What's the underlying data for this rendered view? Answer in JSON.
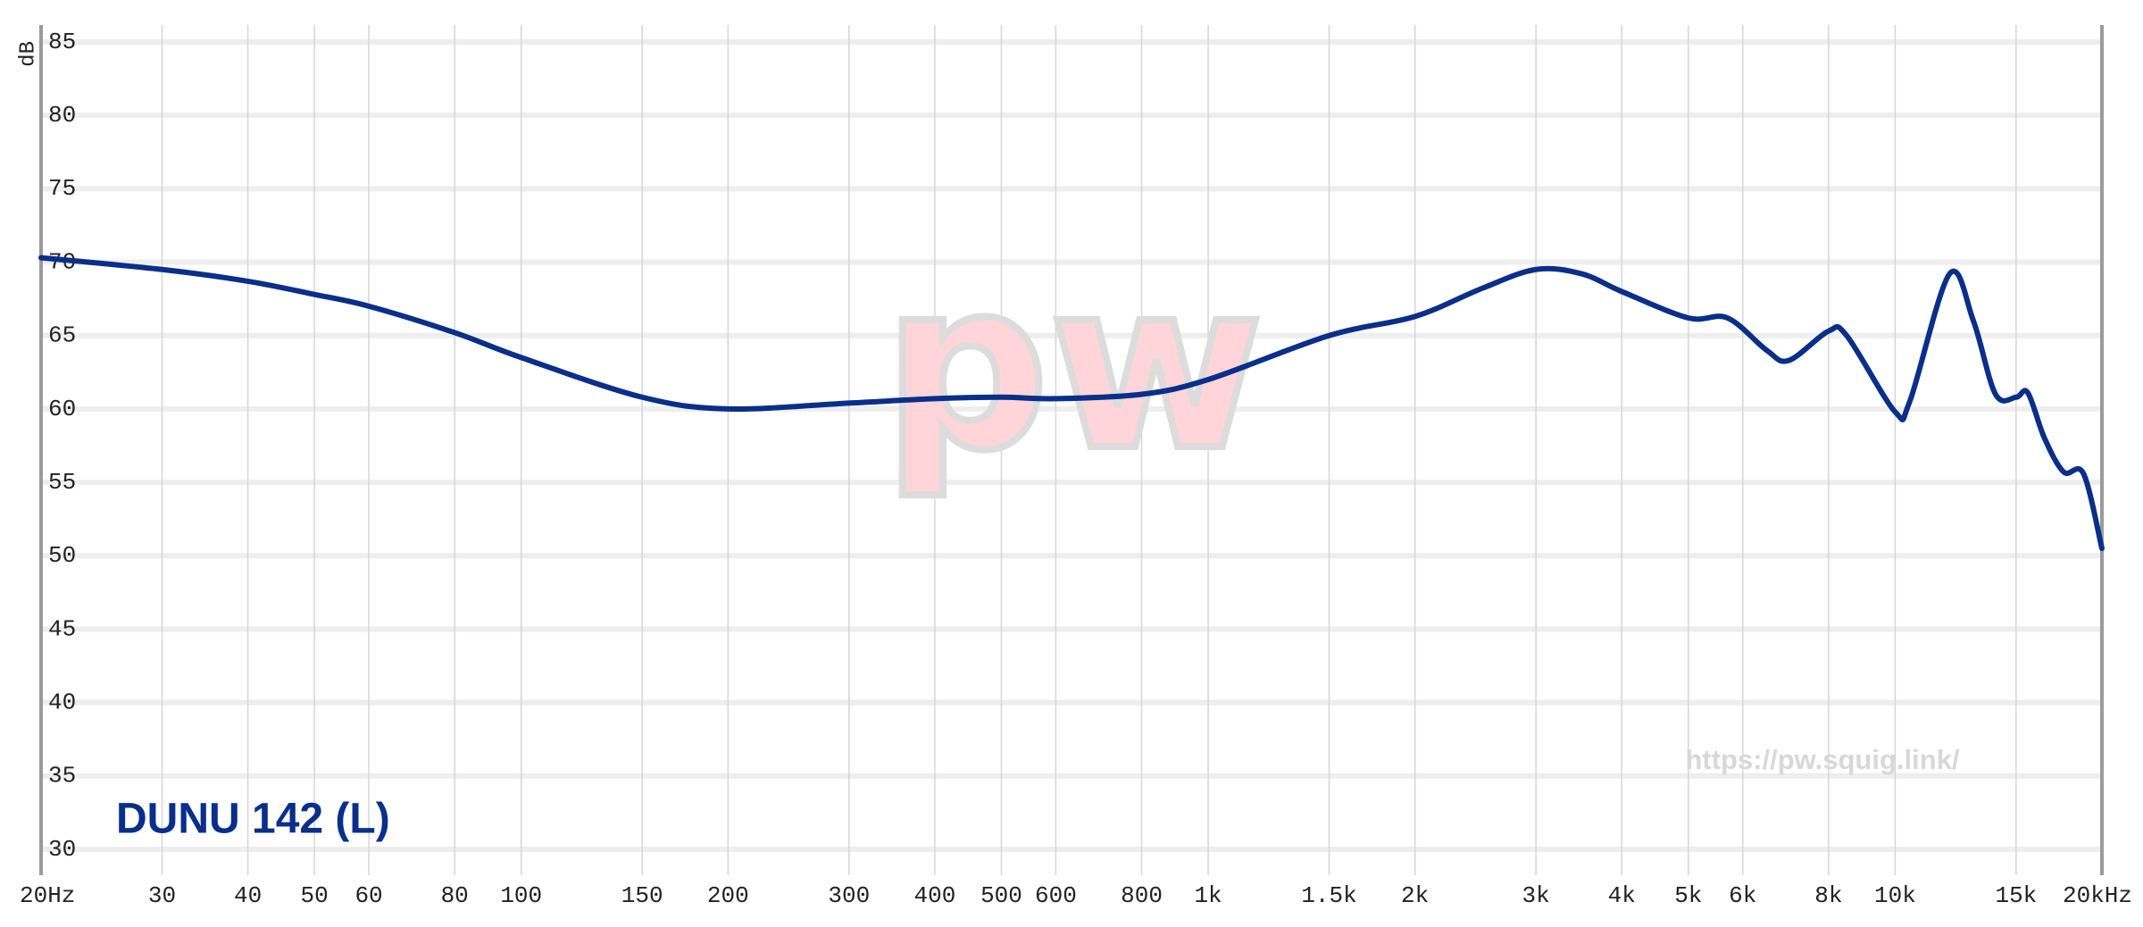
{
  "chart_data": {
    "type": "line",
    "y_label": "dB",
    "legend_label": "DUNU 142 (L)",
    "watermark_url": "https://pw.squig.link/",
    "watermark_logo": "pw",
    "xscale": "log",
    "xlim": [
      20,
      20000
    ],
    "ylim": [
      30,
      85
    ],
    "yticks": [
      30,
      35,
      40,
      45,
      50,
      55,
      60,
      65,
      70,
      75,
      80,
      85
    ],
    "xticks": [
      {
        "value": 20,
        "label": "20Hz"
      },
      30,
      40,
      50,
      60,
      80,
      100,
      150,
      200,
      300,
      400,
      500,
      600,
      800,
      {
        "value": 1000,
        "label": "1k"
      },
      {
        "value": 1500,
        "label": "1.5k"
      },
      {
        "value": 2000,
        "label": "2k"
      },
      {
        "value": 3000,
        "label": "3k"
      },
      {
        "value": 4000,
        "label": "4k"
      },
      {
        "value": 5000,
        "label": "5k"
      },
      {
        "value": 6000,
        "label": "6k"
      },
      {
        "value": 8000,
        "label": "8k"
      },
      {
        "value": 10000,
        "label": "10k"
      },
      {
        "value": 15000,
        "label": "15k"
      },
      {
        "value": 20000,
        "label": "20kHz"
      }
    ],
    "grid": true,
    "series": [
      {
        "name": "DUNU 142 (L)",
        "color": "#0a2f8a",
        "x": [
          20,
          30,
          40,
          50,
          60,
          80,
          100,
          150,
          200,
          300,
          400,
          500,
          600,
          800,
          1000,
          1500,
          2000,
          2500,
          3000,
          3500,
          4000,
          5000,
          5700,
          6500,
          7000,
          8000,
          8500,
          10000,
          10500,
          12000,
          13000,
          14000,
          15000,
          15600,
          16500,
          17600,
          18800,
          20000
        ],
        "values": [
          70.3,
          69.5,
          68.7,
          67.8,
          67,
          65.2,
          63.5,
          60.8,
          60,
          60.4,
          60.7,
          60.8,
          60.7,
          61,
          62,
          65,
          66.3,
          68.2,
          69.5,
          69.2,
          68,
          66.2,
          66.2,
          64,
          63.3,
          65.3,
          65,
          59.8,
          60.5,
          69.2,
          66,
          61,
          60.8,
          61.1,
          58,
          55.7,
          55.6,
          50.5
        ]
      }
    ]
  }
}
